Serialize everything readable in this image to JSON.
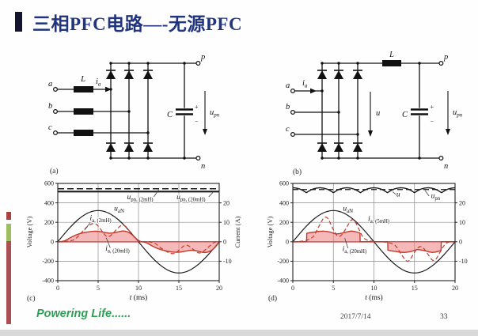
{
  "header": {
    "title": "三相PFC电路—-无源PFC",
    "title_color": "#21357e",
    "marker_color": "#14142c"
  },
  "circuits": {
    "a": {
      "caption": "(a)",
      "phase_a": "a",
      "phase_b": "b",
      "phase_c": "c",
      "inductor": "L",
      "current_main": "i",
      "current_sub": "a",
      "cap": "C",
      "plus": "+",
      "minus": "−",
      "vout_main": "u",
      "vout_sub": "pn",
      "term_p": "p",
      "term_n": "n"
    },
    "b": {
      "caption": "(b)",
      "phase_a": "a",
      "phase_b": "b",
      "phase_c": "c",
      "inductor": "L",
      "current_main": "i",
      "current_sub": "a",
      "cap": "C",
      "plus": "+",
      "minus": "−",
      "umid": "u",
      "vout_main": "u",
      "vout_sub": "pn",
      "term_p": "p",
      "term_n": "n"
    }
  },
  "chart_data": [
    {
      "id": "c",
      "caption": "(c)",
      "type": "line",
      "xlabel_it": "t",
      "xlabel_rest": " (ms)",
      "ylabel_left": "Voltage (V)",
      "ylabel_right": "Current (A)",
      "xlim": [
        0,
        20
      ],
      "ylim": [
        -400,
        600
      ],
      "volts_per_amp": 20,
      "xticks": [
        0,
        5,
        10,
        15,
        20
      ],
      "yticks_left": [
        600,
        400,
        200,
        0,
        -200,
        -400
      ],
      "yticks_right": [
        20,
        10,
        0,
        -10
      ],
      "grid_x": [
        5,
        10,
        15
      ],
      "grid_y": [
        400,
        200,
        -200
      ],
      "zero_line": {
        "color": "#c75050",
        "width": 1.6
      },
      "series": [
        {
          "name": "u_pn_2mH",
          "unit": "V",
          "color": "#1a1a1a",
          "width": 1.5,
          "dash": "8,4",
          "points": [
            [
              0,
              545
            ],
            [
              20,
              545
            ]
          ]
        },
        {
          "name": "u_pn_20mH",
          "unit": "V",
          "color": "#1a1a1a",
          "width": 2.2,
          "points": [
            [
              0,
              516
            ],
            [
              20,
              516
            ]
          ]
        },
        {
          "name": "u_aN",
          "unit": "V",
          "color": "#1a1a1a",
          "width": 1.2,
          "smooth": true,
          "points": [
            [
              0,
              0
            ],
            [
              1,
              100
            ],
            [
              2,
              191
            ],
            [
              3,
              263
            ],
            [
              4,
              309
            ],
            [
              5,
              325
            ],
            [
              6,
              309
            ],
            [
              7,
              263
            ],
            [
              8,
              191
            ],
            [
              9,
              100
            ],
            [
              10,
              0
            ],
            [
              11,
              -100
            ],
            [
              12,
              -191
            ],
            [
              13,
              -263
            ],
            [
              14,
              -309
            ],
            [
              15,
              -325
            ],
            [
              16,
              -309
            ],
            [
              17,
              -263
            ],
            [
              18,
              -191
            ],
            [
              19,
              -100
            ],
            [
              20,
              0
            ]
          ]
        },
        {
          "name": "i_a_20mH",
          "unit": "A",
          "color": "#c0392b",
          "width": 1.4,
          "smooth": true,
          "fill": "rgba(238,128,128,0.55)",
          "points": [
            [
              0,
              0
            ],
            [
              0.7,
              0
            ],
            [
              1.5,
              2
            ],
            [
              2.5,
              4
            ],
            [
              3.8,
              5.2
            ],
            [
              4.8,
              5.5
            ],
            [
              5.6,
              5
            ],
            [
              6.5,
              4.2
            ],
            [
              7.4,
              5
            ],
            [
              8.1,
              5.7
            ],
            [
              8.8,
              5
            ],
            [
              9.4,
              3
            ],
            [
              10.1,
              0
            ],
            [
              10.8,
              0
            ],
            [
              11.6,
              -2
            ],
            [
              12.6,
              -4
            ],
            [
              13.9,
              -5.2
            ],
            [
              14.9,
              -5.5
            ],
            [
              15.7,
              -5
            ],
            [
              16.6,
              -4.2
            ],
            [
              17.5,
              -5
            ],
            [
              18.2,
              -5.7
            ],
            [
              18.9,
              -5
            ],
            [
              19.5,
              -3
            ],
            [
              20,
              0
            ]
          ]
        },
        {
          "name": "i_a_2mH",
          "unit": "A",
          "color": "#c0392b",
          "width": 1.2,
          "dash": "5,3",
          "smooth": true,
          "points": [
            [
              0,
              0
            ],
            [
              1.8,
              0
            ],
            [
              2.6,
              3
            ],
            [
              3.5,
              7.5
            ],
            [
              4.6,
              10.2
            ],
            [
              5.4,
              6
            ],
            [
              6.2,
              1.5
            ],
            [
              7.2,
              6
            ],
            [
              8.1,
              9.5
            ],
            [
              9,
              5
            ],
            [
              9.9,
              0
            ],
            [
              11.9,
              0
            ],
            [
              12.8,
              -3.5
            ],
            [
              14.3,
              -6.9
            ],
            [
              15.1,
              -4
            ],
            [
              15.9,
              -1
            ],
            [
              16.8,
              -4
            ],
            [
              17.6,
              -6.5
            ],
            [
              18.6,
              -3
            ],
            [
              19.4,
              0
            ],
            [
              20,
              0
            ]
          ]
        }
      ],
      "annotations": [
        {
          "t": 10.2,
          "v": 437,
          "main": "u",
          "sub": "pn, (2mH)",
          "leader": [
            [
              11.9,
              462
            ],
            [
              12.5,
              536
            ]
          ]
        },
        {
          "t": 16.5,
          "v": 437,
          "main": "u",
          "sub": "pn, (20mH)",
          "leader": [
            [
              18.7,
              462
            ],
            [
              19.2,
              506
            ]
          ]
        },
        {
          "t": 7.6,
          "v": 318,
          "main": "u",
          "sub": "aN"
        },
        {
          "t": 5.3,
          "v": 222,
          "main": "i",
          "sub": "a, (2mH)",
          "leader": [
            [
              4.0,
              196
            ],
            [
              3.3,
              118
            ]
          ]
        },
        {
          "t": 7.4,
          "v": -92,
          "main": "i",
          "sub": "a, (20mH)",
          "leader": [
            [
              6.5,
              -62
            ],
            [
              6.0,
              42
            ]
          ]
        }
      ]
    },
    {
      "id": "d",
      "caption": "(d)",
      "type": "line",
      "xlabel_it": "t",
      "xlabel_rest": " (ms)",
      "ylabel_left": "Voltage (V)",
      "ylabel_right": "",
      "xlim": [
        0,
        20
      ],
      "ylim": [
        -400,
        600
      ],
      "volts_per_amp": 20,
      "xticks": [
        0,
        5,
        10,
        15,
        20
      ],
      "yticks_left": [
        600,
        400,
        200,
        0,
        -200,
        -400
      ],
      "yticks_right": [
        20,
        10,
        0,
        -10
      ],
      "grid_x": [
        5,
        10,
        15
      ],
      "grid_y": [
        400,
        200,
        -200
      ],
      "zero_line": {
        "color": "#c75050",
        "width": 1.6
      },
      "series": [
        {
          "name": "u",
          "unit": "V",
          "color": "#1a1a1a",
          "width": 1.4,
          "repeat": {
            "period": 3.3333,
            "cycles": 6,
            "points": [
              [
                0,
                556
              ],
              [
                0.42,
                552
              ],
              [
                0.84,
                543
              ],
              [
                1.25,
                527
              ],
              [
                1.67,
                505
              ],
              [
                2.09,
                527
              ],
              [
                2.5,
                543
              ],
              [
                2.92,
                552
              ]
            ],
            "close": [
              [
                20,
                556
              ]
            ]
          }
        },
        {
          "name": "u_pn",
          "unit": "V",
          "color": "#1a1a1a",
          "width": 1.3,
          "dash": "7,4",
          "points": [
            [
              0,
              537
            ],
            [
              20,
              537
            ]
          ]
        },
        {
          "name": "u_aN",
          "unit": "V",
          "color": "#1a1a1a",
          "width": 1.2,
          "smooth": true,
          "points": [
            [
              0,
              0
            ],
            [
              1,
              100
            ],
            [
              2,
              191
            ],
            [
              3,
              263
            ],
            [
              4,
              309
            ],
            [
              5,
              325
            ],
            [
              6,
              309
            ],
            [
              7,
              263
            ],
            [
              8,
              191
            ],
            [
              9,
              100
            ],
            [
              10,
              0
            ],
            [
              11,
              -100
            ],
            [
              12,
              -191
            ],
            [
              13,
              -263
            ],
            [
              14,
              -309
            ],
            [
              15,
              -325
            ],
            [
              16,
              -309
            ],
            [
              17,
              -263
            ],
            [
              18,
              -191
            ],
            [
              19,
              -100
            ],
            [
              20,
              0
            ]
          ]
        },
        {
          "name": "i_a_20mH",
          "unit": "A",
          "color": "#c0392b",
          "width": 1.4,
          "fill": "rgba(238,128,128,0.55)",
          "points": [
            [
              0,
              0
            ],
            [
              1.7,
              0
            ],
            [
              1.72,
              4.3
            ],
            [
              2.1,
              4.7
            ],
            [
              2.6,
              4.95
            ],
            [
              3.1,
              5.3
            ],
            [
              3.7,
              5.5
            ],
            [
              4.2,
              5.3
            ],
            [
              4.6,
              5
            ],
            [
              5,
              4.4
            ],
            [
              5.3,
              4
            ],
            [
              5.8,
              4.2
            ],
            [
              6.3,
              4.65
            ],
            [
              6.8,
              5.2
            ],
            [
              7.2,
              5.5
            ],
            [
              7.6,
              5.3
            ],
            [
              7.9,
              5
            ],
            [
              8.28,
              4.4
            ],
            [
              8.3,
              0
            ],
            [
              11.7,
              0
            ],
            [
              11.72,
              -4.3
            ],
            [
              12.1,
              -4.7
            ],
            [
              12.6,
              -4.95
            ],
            [
              13.1,
              -5.3
            ],
            [
              13.7,
              -5.5
            ],
            [
              14.2,
              -5.3
            ],
            [
              14.6,
              -5
            ],
            [
              15,
              -4.4
            ],
            [
              15.3,
              -4
            ],
            [
              15.8,
              -4.2
            ],
            [
              16.3,
              -4.65
            ],
            [
              16.8,
              -5.2
            ],
            [
              17.2,
              -5.5
            ],
            [
              17.6,
              -5.3
            ],
            [
              17.9,
              -5
            ],
            [
              18.28,
              -4.4
            ],
            [
              18.3,
              0
            ],
            [
              20,
              0
            ]
          ]
        },
        {
          "name": "i_a_5mH",
          "unit": "A",
          "color": "#c0392b",
          "width": 1.2,
          "dash": "5,3",
          "smooth": true,
          "points": [
            [
              0,
              0
            ],
            [
              2.3,
              0
            ],
            [
              3.2,
              8
            ],
            [
              4.1,
              14.5
            ],
            [
              5,
              6
            ],
            [
              5.7,
              1.5
            ],
            [
              6.6,
              7
            ],
            [
              7.4,
              13
            ],
            [
              8.2,
              6
            ],
            [
              8.9,
              0
            ],
            [
              12.4,
              0
            ],
            [
              13.3,
              -6
            ],
            [
              14.2,
              -11.5
            ],
            [
              15,
              -5
            ],
            [
              15.8,
              -1.5
            ],
            [
              16.6,
              -6
            ],
            [
              17.4,
              -11
            ],
            [
              18.2,
              -5
            ],
            [
              18.9,
              0
            ],
            [
              20,
              0
            ]
          ]
        }
      ],
      "annotations": [
        {
          "t": 13.0,
          "v": 465,
          "main": "u",
          "leader": [
            [
              12.7,
              487
            ],
            [
              12.3,
              515
            ]
          ]
        },
        {
          "t": 17.6,
          "v": 448,
          "main": "u",
          "sub": "pn",
          "leader": [
            [
              16.8,
              470
            ],
            [
              16.3,
              527
            ]
          ]
        },
        {
          "t": 6.8,
          "v": 318,
          "main": "u",
          "sub": "aN"
        },
        {
          "t": 10.6,
          "v": 212,
          "main": "i",
          "sub": "a, (5mH)"
        },
        {
          "t": 7.6,
          "v": -95,
          "main": "i",
          "sub": "a, (20mH)",
          "leader": [
            [
              6.8,
              -66
            ],
            [
              6.4,
              38
            ]
          ]
        }
      ]
    }
  ],
  "footer": {
    "slogan": "Powering Life......",
    "slogan_color": "#2f9e55",
    "date": "2017/7/14",
    "page": "33"
  }
}
